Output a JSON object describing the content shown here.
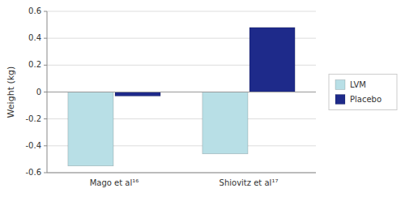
{
  "chart_data": {
    "type": "bar",
    "categories": [
      "Mago et al¹⁶",
      "Shiovitz et al¹⁷"
    ],
    "series": [
      {
        "name": "LVM",
        "color": "#b8dfe6",
        "values": [
          -0.55,
          -0.46
        ]
      },
      {
        "name": "Placebo",
        "color": "#1e2a8a",
        "values": [
          -0.03,
          0.48
        ]
      }
    ],
    "y_label": "Weight (kg)",
    "ylim": [
      -0.6,
      0.6
    ],
    "yticks": [
      -0.6,
      -0.4,
      -0.2,
      0,
      0.2,
      0.4,
      0.6
    ],
    "grid": true,
    "legend": "right"
  }
}
